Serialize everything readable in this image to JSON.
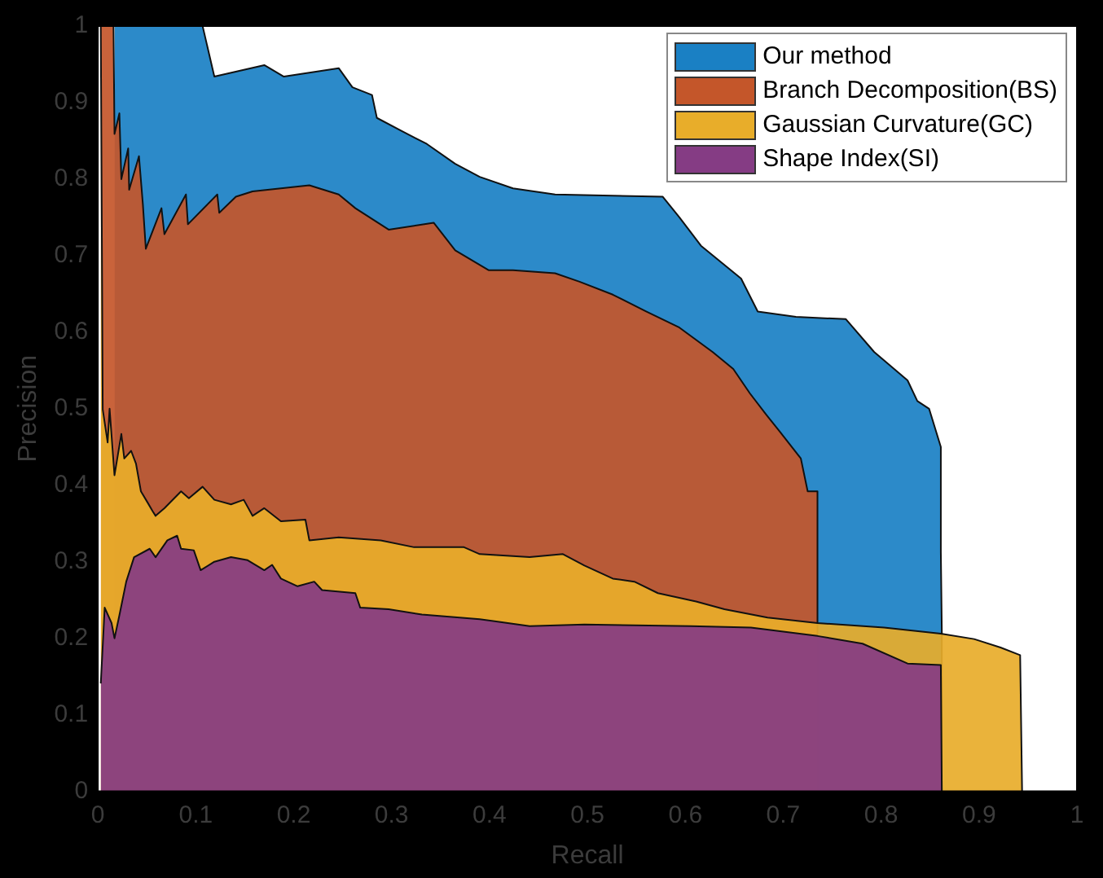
{
  "chart_data": {
    "type": "area",
    "xlabel": "Recall",
    "ylabel": "Precision",
    "xlim": [
      0,
      1
    ],
    "ylim": [
      0,
      1
    ],
    "xticks": [
      0,
      0.1,
      0.2,
      0.3,
      0.4,
      0.5,
      0.6,
      0.7,
      0.8,
      0.9,
      1
    ],
    "yticks": [
      0,
      0.1,
      0.2,
      0.3,
      0.4,
      0.5,
      0.6,
      0.7,
      0.8,
      0.9,
      1
    ],
    "grid": false,
    "legend": "top right",
    "line_style": "solid",
    "marker": "none",
    "series": [
      {
        "name": "Our method",
        "color": "#1a80c4",
        "x": [
          0.017,
          0.107,
          0.119,
          0.17,
          0.19,
          0.246,
          0.26,
          0.28,
          0.285,
          0.31,
          0.336,
          0.365,
          0.39,
          0.424,
          0.467,
          0.577,
          0.594,
          0.616,
          0.657,
          0.674,
          0.713,
          0.764,
          0.793,
          0.827,
          0.837,
          0.849,
          0.861,
          0.861,
          0.862,
          0.862
        ],
        "values": [
          1,
          1,
          0.934,
          0.949,
          0.934,
          0.945,
          0.92,
          0.91,
          0.88,
          0.863,
          0.846,
          0.82,
          0.803,
          0.788,
          0.78,
          0.777,
          0.75,
          0.713,
          0.67,
          0.627,
          0.62,
          0.617,
          0.574,
          0.537,
          0.51,
          0.5,
          0.45,
          0.313,
          0.21,
          0
        ]
      },
      {
        "name": "Branch Decomposition(BS)",
        "color": "#c4562a",
        "x": [
          0.003,
          0.016,
          0.017,
          0.022,
          0.024,
          0.031,
          0.032,
          0.042,
          0.046,
          0.049,
          0.065,
          0.068,
          0.09,
          0.092,
          0.122,
          0.124,
          0.141,
          0.158,
          0.187,
          0.216,
          0.246,
          0.263,
          0.297,
          0.343,
          0.365,
          0.399,
          0.424,
          0.467,
          0.492,
          0.526,
          0.56,
          0.594,
          0.628,
          0.649,
          0.666,
          0.684,
          0.696,
          0.718,
          0.725,
          0.735,
          0.735
        ],
        "values": [
          1,
          1,
          0.859,
          0.886,
          0.8,
          0.84,
          0.786,
          0.83,
          0.767,
          0.709,
          0.762,
          0.728,
          0.78,
          0.741,
          0.78,
          0.756,
          0.777,
          0.784,
          0.788,
          0.792,
          0.78,
          0.762,
          0.734,
          0.743,
          0.707,
          0.681,
          0.681,
          0.677,
          0.666,
          0.649,
          0.627,
          0.606,
          0.574,
          0.552,
          0.52,
          0.49,
          0.471,
          0.435,
          0.392,
          0.392,
          0
        ]
      },
      {
        "name": "Gaussian Curvature(GC)",
        "color": "#e8ad2a",
        "x": [
          0.003,
          0.005,
          0.01,
          0.012,
          0.017,
          0.024,
          0.027,
          0.034,
          0.039,
          0.044,
          0.051,
          0.056,
          0.059,
          0.068,
          0.085,
          0.093,
          0.107,
          0.119,
          0.136,
          0.149,
          0.158,
          0.17,
          0.187,
          0.212,
          0.216,
          0.246,
          0.289,
          0.323,
          0.374,
          0.39,
          0.441,
          0.475,
          0.497,
          0.526,
          0.548,
          0.572,
          0.611,
          0.64,
          0.684,
          0.735,
          0.803,
          0.861,
          0.895,
          0.922,
          0.942,
          0.944
        ],
        "values": [
          1,
          0.499,
          0.456,
          0.5,
          0.413,
          0.467,
          0.435,
          0.445,
          0.428,
          0.392,
          0.377,
          0.366,
          0.36,
          0.37,
          0.392,
          0.383,
          0.398,
          0.381,
          0.375,
          0.381,
          0.36,
          0.37,
          0.353,
          0.355,
          0.328,
          0.332,
          0.328,
          0.319,
          0.319,
          0.31,
          0.306,
          0.31,
          0.295,
          0.278,
          0.274,
          0.259,
          0.248,
          0.238,
          0.227,
          0.22,
          0.214,
          0.206,
          0.199,
          0.188,
          0.178,
          0
        ]
      },
      {
        "name": "Shape Index(SI)",
        "color": "#853c84",
        "x": [
          0.003,
          0.007,
          0.014,
          0.017,
          0.022,
          0.029,
          0.037,
          0.053,
          0.059,
          0.071,
          0.081,
          0.085,
          0.098,
          0.105,
          0.119,
          0.136,
          0.153,
          0.17,
          0.178,
          0.187,
          0.204,
          0.221,
          0.229,
          0.263,
          0.268,
          0.297,
          0.331,
          0.39,
          0.441,
          0.497,
          0.606,
          0.667,
          0.735,
          0.781,
          0.827,
          0.861,
          0.862
        ],
        "values": [
          0.141,
          0.24,
          0.22,
          0.2,
          0.23,
          0.274,
          0.306,
          0.317,
          0.306,
          0.328,
          0.334,
          0.317,
          0.315,
          0.289,
          0.3,
          0.306,
          0.302,
          0.289,
          0.296,
          0.278,
          0.268,
          0.274,
          0.263,
          0.259,
          0.24,
          0.238,
          0.231,
          0.225,
          0.216,
          0.218,
          0.216,
          0.214,
          0.203,
          0.193,
          0.167,
          0.165,
          0
        ]
      }
    ]
  }
}
